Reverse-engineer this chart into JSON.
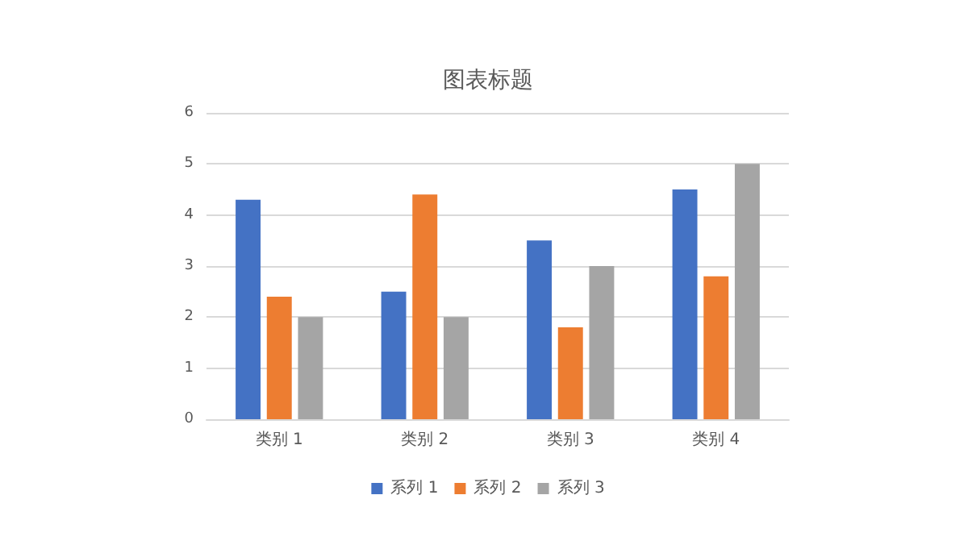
{
  "chart_data": {
    "type": "bar",
    "title": "图表标题",
    "categories": [
      "类别 1",
      "类别 2",
      "类别 3",
      "类别 4"
    ],
    "series": [
      {
        "name": "系列 1",
        "color": "#4472c4",
        "values": [
          4.3,
          2.5,
          3.5,
          4.5
        ]
      },
      {
        "name": "系列 2",
        "color": "#ed7d31",
        "values": [
          2.4,
          4.4,
          1.8,
          2.8
        ]
      },
      {
        "name": "系列 3",
        "color": "#a5a5a5",
        "values": [
          2,
          2,
          3,
          5
        ]
      }
    ],
    "ylim": [
      0,
      6
    ],
    "yticks": [
      0,
      1,
      2,
      3,
      4,
      5,
      6
    ],
    "grid": "y",
    "legend": "bottom"
  }
}
